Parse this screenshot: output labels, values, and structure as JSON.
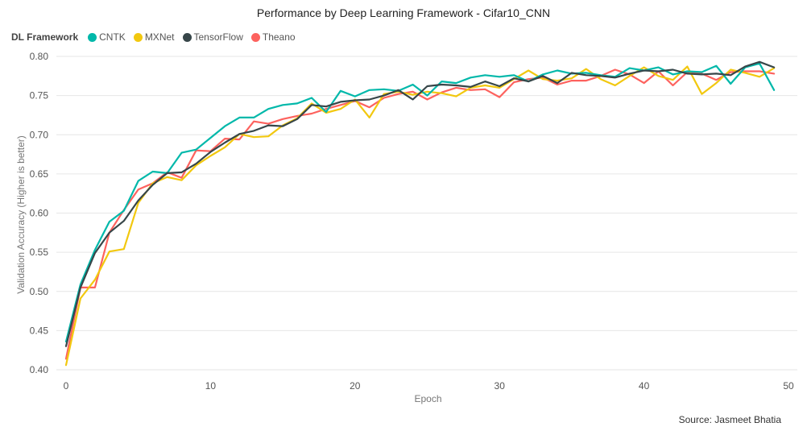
{
  "chart_data": {
    "type": "line",
    "title": "Performance by Deep Learning Framework - Cifar10_CNN",
    "xlabel": "Epoch",
    "ylabel": "Validation Accuracy (Higher is better)",
    "xlim": [
      0,
      50
    ],
    "ylim": [
      0.4,
      0.8
    ],
    "xticks": [
      0,
      10,
      20,
      30,
      40,
      50
    ],
    "yticks": [
      0.4,
      0.45,
      0.5,
      0.55,
      0.6,
      0.65,
      0.7,
      0.75,
      0.8
    ],
    "ytick_labels": [
      "0.40",
      "0.45",
      "0.50",
      "0.55",
      "0.60",
      "0.65",
      "0.70",
      "0.75",
      "0.80"
    ],
    "grid": "horizontal",
    "legend_title": "DL Framework",
    "legend_placement": "top-left",
    "x": [
      0,
      1,
      2,
      3,
      4,
      5,
      6,
      7,
      8,
      9,
      10,
      11,
      12,
      13,
      14,
      15,
      16,
      17,
      18,
      19,
      20,
      21,
      22,
      23,
      24,
      25,
      26,
      27,
      28,
      29,
      30,
      31,
      32,
      33,
      34,
      35,
      36,
      37,
      38,
      39,
      40,
      41,
      42,
      43,
      44,
      45,
      46,
      47,
      48,
      49
    ],
    "series": [
      {
        "name": "CNTK",
        "color": "#01B8AA",
        "values": [
          0.436,
          0.509,
          0.553,
          0.589,
          0.603,
          0.641,
          0.653,
          0.651,
          0.677,
          0.681,
          0.696,
          0.711,
          0.722,
          0.722,
          0.733,
          0.738,
          0.74,
          0.747,
          0.729,
          0.756,
          0.749,
          0.757,
          0.758,
          0.756,
          0.764,
          0.75,
          0.768,
          0.766,
          0.773,
          0.776,
          0.774,
          0.776,
          0.768,
          0.777,
          0.782,
          0.778,
          0.779,
          0.776,
          0.774,
          0.785,
          0.782,
          0.786,
          0.777,
          0.781,
          0.78,
          0.788,
          0.765,
          0.786,
          0.791,
          0.757
        ]
      },
      {
        "name": "MXNet",
        "color": "#F2C80F",
        "values": [
          0.406,
          0.491,
          0.515,
          0.551,
          0.554,
          0.613,
          0.638,
          0.646,
          0.642,
          0.661,
          0.673,
          0.684,
          0.701,
          0.697,
          0.698,
          0.712,
          0.721,
          0.74,
          0.728,
          0.733,
          0.745,
          0.722,
          0.752,
          0.755,
          0.751,
          0.755,
          0.753,
          0.749,
          0.76,
          0.763,
          0.76,
          0.771,
          0.782,
          0.771,
          0.769,
          0.772,
          0.784,
          0.771,
          0.763,
          0.775,
          0.786,
          0.775,
          0.77,
          0.787,
          0.752,
          0.766,
          0.783,
          0.779,
          0.774,
          0.785
        ]
      },
      {
        "name": "TensorFlow",
        "color": "#374649",
        "values": [
          0.43,
          0.505,
          0.549,
          0.575,
          0.59,
          0.616,
          0.636,
          0.651,
          0.652,
          0.663,
          0.678,
          0.69,
          0.701,
          0.705,
          0.712,
          0.711,
          0.72,
          0.738,
          0.736,
          0.742,
          0.744,
          0.745,
          0.75,
          0.757,
          0.745,
          0.762,
          0.764,
          0.763,
          0.761,
          0.768,
          0.762,
          0.772,
          0.768,
          0.775,
          0.766,
          0.779,
          0.776,
          0.775,
          0.773,
          0.778,
          0.782,
          0.781,
          0.783,
          0.778,
          0.777,
          0.778,
          0.776,
          0.787,
          0.793,
          0.786
        ]
      },
      {
        "name": "Theano",
        "color": "#FD625E",
        "values": [
          0.414,
          0.505,
          0.505,
          0.575,
          0.604,
          0.63,
          0.638,
          0.652,
          0.645,
          0.68,
          0.679,
          0.695,
          0.694,
          0.717,
          0.714,
          0.72,
          0.724,
          0.727,
          0.733,
          0.738,
          0.743,
          0.735,
          0.747,
          0.752,
          0.755,
          0.745,
          0.754,
          0.76,
          0.757,
          0.758,
          0.748,
          0.767,
          0.771,
          0.773,
          0.764,
          0.769,
          0.769,
          0.775,
          0.783,
          0.777,
          0.766,
          0.781,
          0.763,
          0.78,
          0.778,
          0.77,
          0.78,
          0.781,
          0.781,
          0.778
        ]
      }
    ]
  },
  "source": "Source: Jasmeet Bhatia"
}
